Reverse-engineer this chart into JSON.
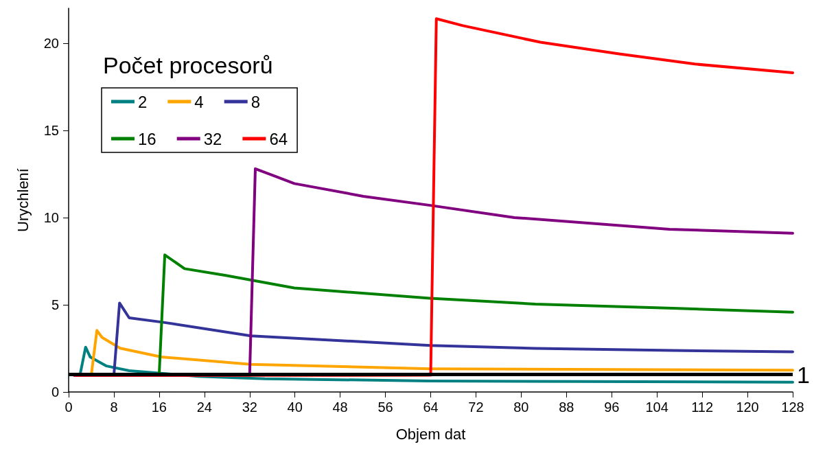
{
  "chart_data": {
    "type": "line",
    "xlabel": "Objem dat",
    "ylabel": "Urychlení",
    "legend_title": "Počet procesorů",
    "legend": "top left",
    "grid": false,
    "marker": "none",
    "line_style": "solid",
    "xlim": [
      0,
      128
    ],
    "xticks": [
      0,
      8,
      16,
      24,
      32,
      40,
      48,
      56,
      64,
      72,
      80,
      88,
      96,
      104,
      112,
      120,
      128
    ],
    "ylim": [
      0,
      22
    ],
    "yticks": [
      0,
      5,
      10,
      15,
      20
    ],
    "ref_lines": [
      {
        "axis": "y",
        "value": 1,
        "label": "1",
        "color": "#000000"
      }
    ],
    "series": [
      {
        "name": "2",
        "color": "#008080",
        "x": [
          2,
          3,
          3.8,
          6.7,
          10.7,
          22.9,
          34.7,
          63.9,
          128
        ],
        "values": [
          0.96,
          2.57,
          2.01,
          1.49,
          1.22,
          0.9,
          0.76,
          0.63,
          0.56
        ]
      },
      {
        "name": "4",
        "color": "#ffa500",
        "x": [
          4,
          5,
          5.9,
          9.1,
          16.4,
          32.2,
          63.9,
          128
        ],
        "values": [
          0.96,
          3.53,
          3.13,
          2.51,
          2.01,
          1.58,
          1.33,
          1.25
        ]
      },
      {
        "name": "8",
        "color": "#333399",
        "x": [
          8,
          9,
          10.7,
          16.8,
          32.2,
          63.9,
          82.5,
          106.8,
          128
        ],
        "values": [
          0.96,
          5.1,
          4.25,
          3.99,
          3.22,
          2.67,
          2.5,
          2.38,
          2.3
        ]
      },
      {
        "name": "16",
        "color": "#008000",
        "x": [
          16,
          17,
          20.5,
          27.8,
          39.9,
          63.9,
          82.5,
          106.8,
          128
        ],
        "values": [
          0.96,
          7.86,
          7.07,
          6.68,
          5.96,
          5.37,
          5.04,
          4.8,
          4.58
        ]
      },
      {
        "name": "32",
        "color": "#800080",
        "x": [
          1,
          32,
          33,
          39.9,
          52.1,
          63.9,
          78.8,
          106.2,
          128
        ],
        "values": [
          0.95,
          0.96,
          12.8,
          11.95,
          11.22,
          10.7,
          10,
          9.33,
          9.1
        ]
      },
      {
        "name": "64",
        "color": "#ff0000",
        "x": [
          1,
          64,
          65,
          69.7,
          83.4,
          97.1,
          110.7,
          128
        ],
        "values": [
          0.95,
          0.96,
          21.4,
          21,
          20.05,
          19.39,
          18.8,
          18.3
        ]
      }
    ]
  }
}
